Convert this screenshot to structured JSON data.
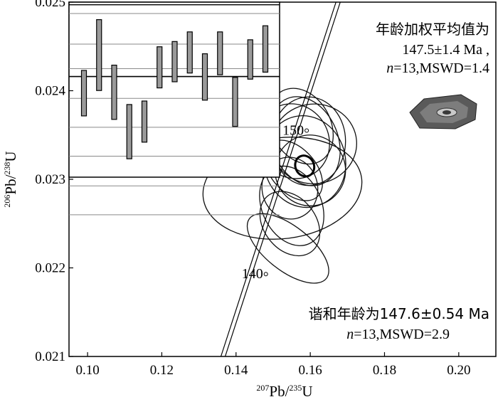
{
  "chart_data": {
    "type": "scatter",
    "subtype": "concordia",
    "xlabel": {
      "mass": "207",
      "base": "Pb/",
      "mass2": "235",
      "base2": "U"
    },
    "ylabel": {
      "mass": "206",
      "base": "Pb/",
      "mass2": "238",
      "base2": "U"
    },
    "xlim": [
      0.095,
      0.21
    ],
    "ylim": [
      0.021,
      0.025
    ],
    "x_ticks": [
      "0.10",
      "0.12",
      "0.14",
      "0.16",
      "0.18",
      "0.20"
    ],
    "y_ticks": [
      "0.021",
      "0.022",
      "0.023",
      "0.024",
      "0.025"
    ],
    "concordia_ages": [
      {
        "label": "140",
        "x": 0.1465,
        "y": 0.02193
      },
      {
        "label": "150",
        "x": 0.1575,
        "y": 0.02355
      }
    ],
    "ellipses": [
      {
        "x": 0.1525,
        "y": 0.0229,
        "rx": 0.0215,
        "ry": 0.00057,
        "rot": -7
      },
      {
        "x": 0.1585,
        "y": 0.0232,
        "rx": 0.011,
        "ry": 0.00052,
        "rot": -12
      },
      {
        "x": 0.1555,
        "y": 0.02343,
        "rx": 0.0095,
        "ry": 0.00043,
        "rot": -30
      },
      {
        "x": 0.1585,
        "y": 0.02343,
        "rx": 0.009,
        "ry": 0.00052,
        "rot": -22
      },
      {
        "x": 0.1595,
        "y": 0.02343,
        "rx": 0.01,
        "ry": 0.0005,
        "rot": 0
      },
      {
        "x": 0.1555,
        "y": 0.0231,
        "rx": 0.006,
        "ry": 0.0004,
        "rot": -42
      },
      {
        "x": 0.154,
        "y": 0.02222,
        "rx": 0.006,
        "ry": 0.00055,
        "rot": -52
      },
      {
        "x": 0.1545,
        "y": 0.0225,
        "rx": 0.007,
        "ry": 0.0004,
        "rot": -38
      },
      {
        "x": 0.1545,
        "y": 0.0229,
        "rx": 0.0075,
        "ry": 0.00035,
        "rot": -10
      },
      {
        "x": 0.155,
        "y": 0.0227,
        "rx": 0.008,
        "ry": 0.00047,
        "rot": -25
      },
      {
        "x": 0.16,
        "y": 0.0231,
        "rx": 0.0095,
        "ry": 0.0004,
        "rot": -18
      },
      {
        "x": 0.161,
        "y": 0.0234,
        "rx": 0.0115,
        "ry": 0.00045,
        "rot": -5
      },
      {
        "x": 0.1575,
        "y": 0.0236,
        "rx": 0.008,
        "ry": 0.00045,
        "rot": -28
      }
    ],
    "mean_ellipse": {
      "x": 0.1585,
      "y": 0.02315,
      "rx": 0.0025,
      "ry": 0.00012,
      "rot": -25
    },
    "inset_weighted_mean": {
      "ylim": [
        0.023,
        0.025
      ],
      "mean": 0.02415,
      "bars": [
        {
          "low": 0.0237,
          "high": 0.02422
        },
        {
          "low": 0.02399,
          "high": 0.0248
        },
        {
          "low": 0.02366,
          "high": 0.02428
        },
        {
          "low": 0.02321,
          "high": 0.02383
        },
        {
          "low": 0.0234,
          "high": 0.02387
        },
        {
          "low": 0.02402,
          "high": 0.02449
        },
        {
          "low": 0.02409,
          "high": 0.02455
        },
        {
          "low": 0.02419,
          "high": 0.02466
        },
        {
          "low": 0.02388,
          "high": 0.02441
        },
        {
          "low": 0.02417,
          "high": 0.02466
        },
        {
          "low": 0.02358,
          "high": 0.02414
        },
        {
          "low": 0.02412,
          "high": 0.02457
        },
        {
          "low": 0.0242,
          "high": 0.02473
        }
      ]
    },
    "annotations": {
      "weighted_title": "年龄加权平均值为",
      "weighted_age": "147.5±1.4 Ma ,",
      "weighted_n_prefix": "n",
      "weighted_stats": "=13,MSWD=1.4",
      "concordia_title": "谐和年龄为147.6±0.54 Ma",
      "concordia_n_prefix": "n",
      "concordia_stats": "=13,MSWD=2.9"
    }
  }
}
